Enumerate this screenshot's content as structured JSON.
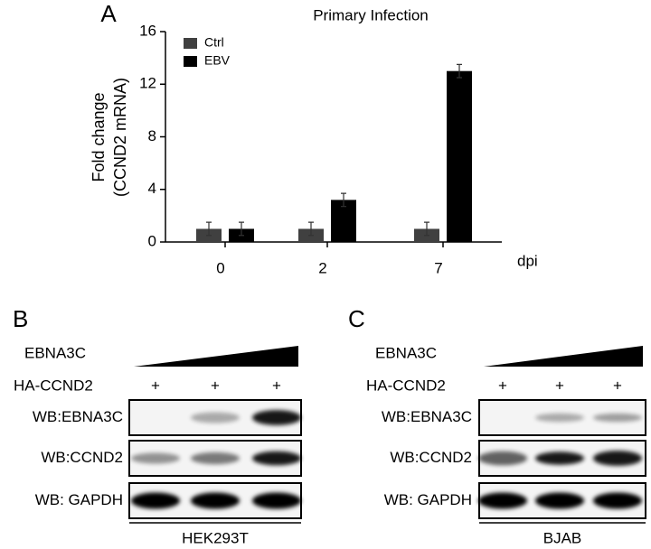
{
  "chart_data": {
    "type": "bar",
    "title": "Primary Infection",
    "ylabel": [
      "Fold change",
      "(CCND2 mRNA)"
    ],
    "xlabel": "dpi",
    "categories": [
      "0",
      "2",
      "7"
    ],
    "series": [
      {
        "name": "Ctrl",
        "color": "#404040",
        "values": [
          1,
          1,
          1
        ],
        "errors": [
          0.5,
          0.5,
          0.5
        ]
      },
      {
        "name": "EBV",
        "color": "#000000",
        "values": [
          1,
          3.2,
          13
        ],
        "errors": [
          0.5,
          0.5,
          0.5
        ]
      }
    ],
    "ylim": [
      0,
      16
    ],
    "yticks": [
      0,
      4,
      8,
      12,
      16
    ],
    "grid": false
  },
  "panel_labels": [
    "A",
    "B",
    "C"
  ],
  "blots": [
    {
      "treatment": "EBNA3C",
      "transfection": "HA-CCND2",
      "lanes": [
        "+",
        "+",
        "+"
      ],
      "rows": [
        "WB:EBNA3C",
        "WB:CCND2",
        "WB: GAPDH"
      ],
      "cell_line": "HEK293T"
    },
    {
      "treatment": "EBNA3C",
      "transfection": "HA-CCND2",
      "lanes": [
        "+",
        "+",
        "+"
      ],
      "rows": [
        "WB:EBNA3C",
        "WB:CCND2",
        "WB: GAPDH"
      ],
      "cell_line": "BJAB"
    }
  ]
}
